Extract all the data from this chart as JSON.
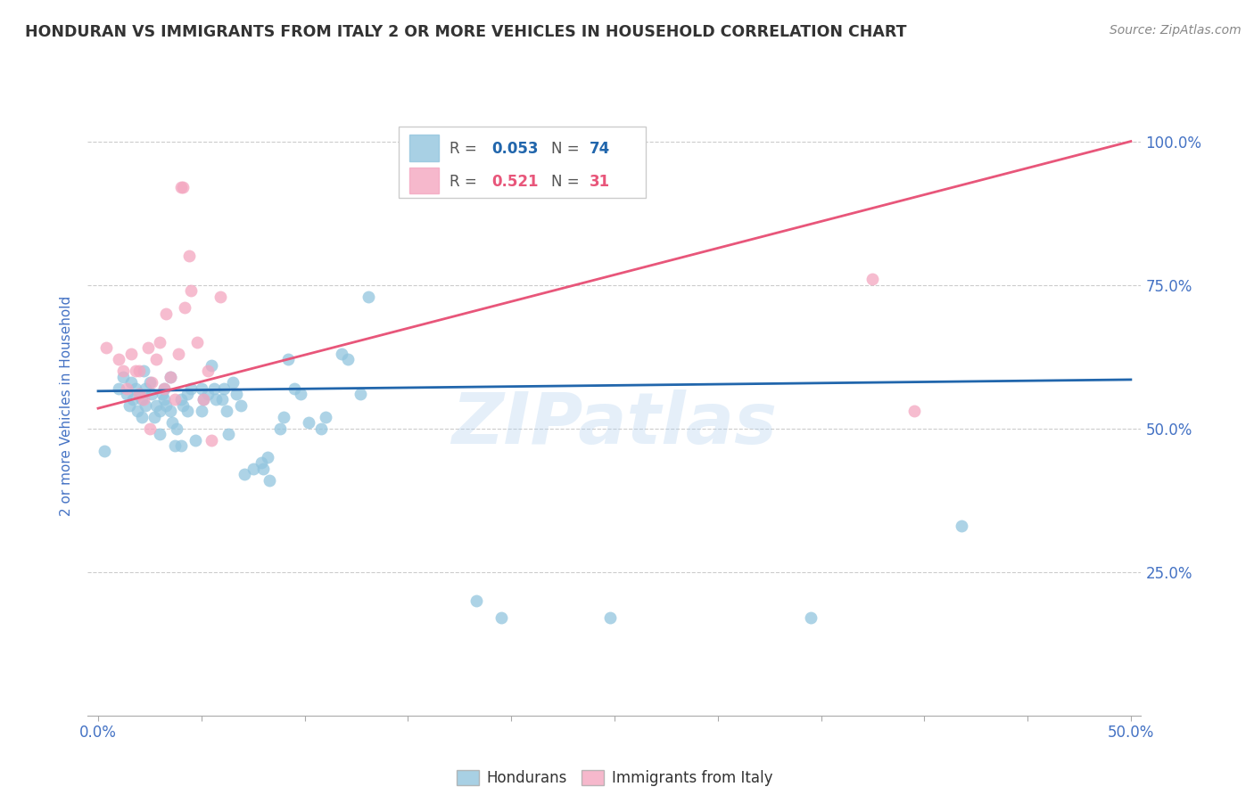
{
  "title": "HONDURAN VS IMMIGRANTS FROM ITALY 2 OR MORE VEHICLES IN HOUSEHOLD CORRELATION CHART",
  "source": "Source: ZipAtlas.com",
  "ylabel": "2 or more Vehicles in Household",
  "ytick_labels": [
    "100.0%",
    "75.0%",
    "50.0%",
    "25.0%"
  ],
  "ytick_values": [
    100.0,
    75.0,
    50.0,
    25.0
  ],
  "legend_label1": "Hondurans",
  "legend_label2": "Immigrants from Italy",
  "watermark": "ZIPatlas",
  "blue_scatter_color": "#92c5de",
  "pink_scatter_color": "#f4a6c0",
  "blue_line_color": "#2166ac",
  "pink_line_color": "#e8567a",
  "title_color": "#333333",
  "axis_label_color": "#4472c4",
  "source_color": "#888888",
  "blue_scatter": [
    [
      0.3,
      46.0
    ],
    [
      1.0,
      57.0
    ],
    [
      1.2,
      59.0
    ],
    [
      1.4,
      56.0
    ],
    [
      1.5,
      54.0
    ],
    [
      1.6,
      58.0
    ],
    [
      1.7,
      55.0
    ],
    [
      1.8,
      57.0
    ],
    [
      1.9,
      53.0
    ],
    [
      2.0,
      56.0
    ],
    [
      2.1,
      52.0
    ],
    [
      2.1,
      55.0
    ],
    [
      2.2,
      60.0
    ],
    [
      2.3,
      54.0
    ],
    [
      2.3,
      57.0
    ],
    [
      2.5,
      58.0
    ],
    [
      2.6,
      56.0
    ],
    [
      2.7,
      52.0
    ],
    [
      2.8,
      54.0
    ],
    [
      3.0,
      49.0
    ],
    [
      3.0,
      53.0
    ],
    [
      3.1,
      56.0
    ],
    [
      3.2,
      57.0
    ],
    [
      3.2,
      55.0
    ],
    [
      3.3,
      54.0
    ],
    [
      3.5,
      59.0
    ],
    [
      3.5,
      53.0
    ],
    [
      3.6,
      51.0
    ],
    [
      3.7,
      47.0
    ],
    [
      3.8,
      50.0
    ],
    [
      4.0,
      55.0
    ],
    [
      4.0,
      47.0
    ],
    [
      4.1,
      54.0
    ],
    [
      4.3,
      56.0
    ],
    [
      4.3,
      53.0
    ],
    [
      4.5,
      57.0
    ],
    [
      4.7,
      48.0
    ],
    [
      5.0,
      53.0
    ],
    [
      5.0,
      57.0
    ],
    [
      5.1,
      55.0
    ],
    [
      5.3,
      56.0
    ],
    [
      5.5,
      61.0
    ],
    [
      5.6,
      57.0
    ],
    [
      5.7,
      55.0
    ],
    [
      6.0,
      55.0
    ],
    [
      6.1,
      57.0
    ],
    [
      6.2,
      53.0
    ],
    [
      6.3,
      49.0
    ],
    [
      6.5,
      58.0
    ],
    [
      6.7,
      56.0
    ],
    [
      6.9,
      54.0
    ],
    [
      7.1,
      42.0
    ],
    [
      7.5,
      43.0
    ],
    [
      7.9,
      44.0
    ],
    [
      8.0,
      43.0
    ],
    [
      8.2,
      45.0
    ],
    [
      8.3,
      41.0
    ],
    [
      8.8,
      50.0
    ],
    [
      9.0,
      52.0
    ],
    [
      9.2,
      62.0
    ],
    [
      9.5,
      57.0
    ],
    [
      9.8,
      56.0
    ],
    [
      10.2,
      51.0
    ],
    [
      10.8,
      50.0
    ],
    [
      11.0,
      52.0
    ],
    [
      11.8,
      63.0
    ],
    [
      12.1,
      62.0
    ],
    [
      12.7,
      56.0
    ],
    [
      13.1,
      73.0
    ],
    [
      18.3,
      20.0
    ],
    [
      19.5,
      17.0
    ],
    [
      24.8,
      17.0
    ],
    [
      34.5,
      17.0
    ],
    [
      41.8,
      33.0
    ]
  ],
  "pink_scatter": [
    [
      0.4,
      64.0
    ],
    [
      1.0,
      62.0
    ],
    [
      1.2,
      60.0
    ],
    [
      1.4,
      57.0
    ],
    [
      1.6,
      63.0
    ],
    [
      1.8,
      60.0
    ],
    [
      2.0,
      56.0
    ],
    [
      2.0,
      60.0
    ],
    [
      2.2,
      55.0
    ],
    [
      2.4,
      64.0
    ],
    [
      2.5,
      50.0
    ],
    [
      2.6,
      58.0
    ],
    [
      2.8,
      62.0
    ],
    [
      3.0,
      65.0
    ],
    [
      3.2,
      57.0
    ],
    [
      3.3,
      70.0
    ],
    [
      3.5,
      59.0
    ],
    [
      3.7,
      55.0
    ],
    [
      3.9,
      63.0
    ],
    [
      4.0,
      92.0
    ],
    [
      4.1,
      92.0
    ],
    [
      4.2,
      71.0
    ],
    [
      4.4,
      80.0
    ],
    [
      4.5,
      74.0
    ],
    [
      4.8,
      65.0
    ],
    [
      5.1,
      55.0
    ],
    [
      5.3,
      60.0
    ],
    [
      5.5,
      48.0
    ],
    [
      5.9,
      73.0
    ],
    [
      37.5,
      76.0
    ],
    [
      39.5,
      53.0
    ]
  ],
  "blue_line": {
    "x0": 0.0,
    "x1": 50.0,
    "y0": 56.5,
    "y1": 58.5
  },
  "pink_line": {
    "x0": 0.0,
    "x1": 50.0,
    "y0": 53.5,
    "y1": 100.0
  },
  "xlim": [
    -0.5,
    50.5
  ],
  "ylim": [
    0.0,
    108.0
  ],
  "figsize": [
    14.06,
    8.92
  ],
  "dpi": 100
}
